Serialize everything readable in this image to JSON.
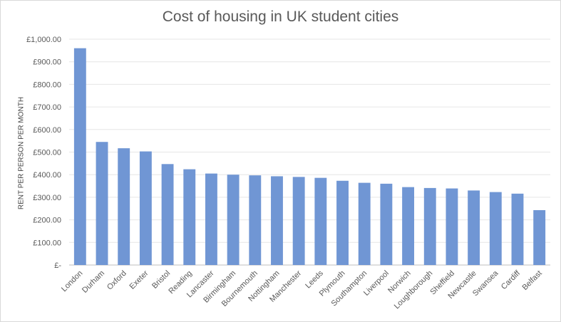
{
  "chart_data": {
    "type": "bar",
    "title": "Cost of housing in UK student cities",
    "xlabel": "",
    "ylabel": "RENT PER PERSON PER MONTH",
    "ylim": [
      0,
      1000
    ],
    "y_ticks": [
      {
        "value": 0,
        "label": "£-"
      },
      {
        "value": 100,
        "label": "£100.00"
      },
      {
        "value": 200,
        "label": "£200.00"
      },
      {
        "value": 300,
        "label": "£300.00"
      },
      {
        "value": 400,
        "label": "£400.00"
      },
      {
        "value": 500,
        "label": "£500.00"
      },
      {
        "value": 600,
        "label": "£600.00"
      },
      {
        "value": 700,
        "label": "£700.00"
      },
      {
        "value": 800,
        "label": "£800.00"
      },
      {
        "value": 900,
        "label": "£900.00"
      },
      {
        "value": 1000,
        "label": "£1,000.00"
      }
    ],
    "grid": true,
    "legend": "none",
    "bar_color": "#7096d4",
    "categories": [
      "London",
      "Durham",
      "Oxford",
      "Exeter",
      "Bristol",
      "Reading",
      "Lancaster",
      "Birmingham",
      "Bournemouth",
      "Nottingham",
      "Manchester",
      "Leeds",
      "Plymouth",
      "Southampton",
      "Liverpool",
      "Norwich",
      "Loughborough",
      "Sheffield",
      "Newcastle",
      "Swansea",
      "Cardiff",
      "Belfast"
    ],
    "values": [
      960,
      545,
      517,
      503,
      447,
      424,
      405,
      400,
      397,
      393,
      390,
      386,
      373,
      364,
      360,
      345,
      341,
      339,
      330,
      323,
      316,
      243
    ]
  }
}
